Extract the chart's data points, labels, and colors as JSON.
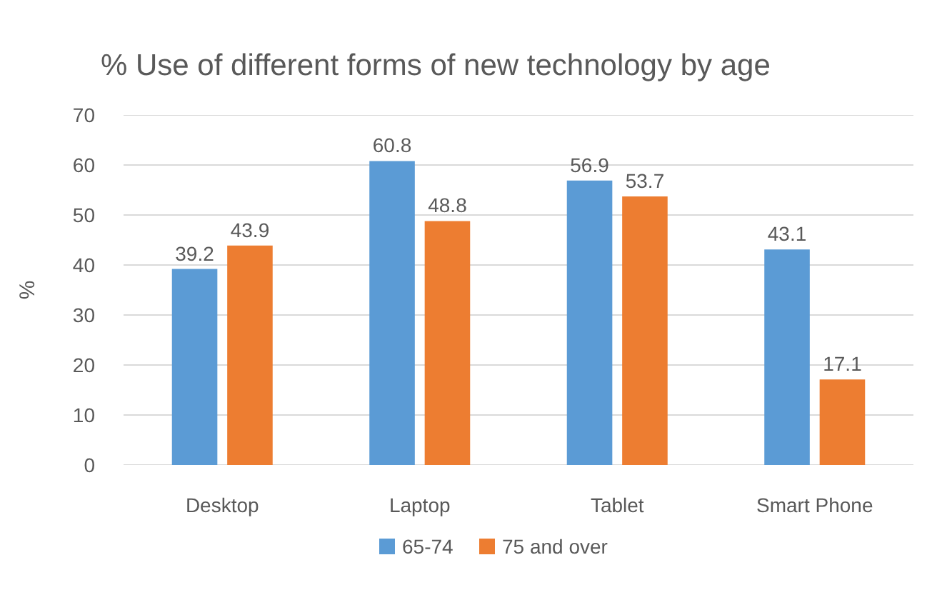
{
  "chart_data": {
    "type": "bar",
    "title": "% Use of different forms of new technology by age",
    "ylabel": "%",
    "categories": [
      "Desktop",
      "Laptop",
      "Tablet",
      "Smart Phone"
    ],
    "series": [
      {
        "name": "65-74",
        "color": "#5b9bd5",
        "values": [
          39.2,
          60.8,
          56.9,
          43.1
        ]
      },
      {
        "name": "75 and over",
        "color": "#ed7d31",
        "values": [
          43.9,
          48.8,
          53.7,
          17.1
        ]
      }
    ],
    "ylim": [
      0,
      70
    ],
    "yticks": [
      0,
      10,
      20,
      30,
      40,
      50,
      60,
      70
    ],
    "grid": "y",
    "legend": "bottom",
    "data_labels": true
  }
}
